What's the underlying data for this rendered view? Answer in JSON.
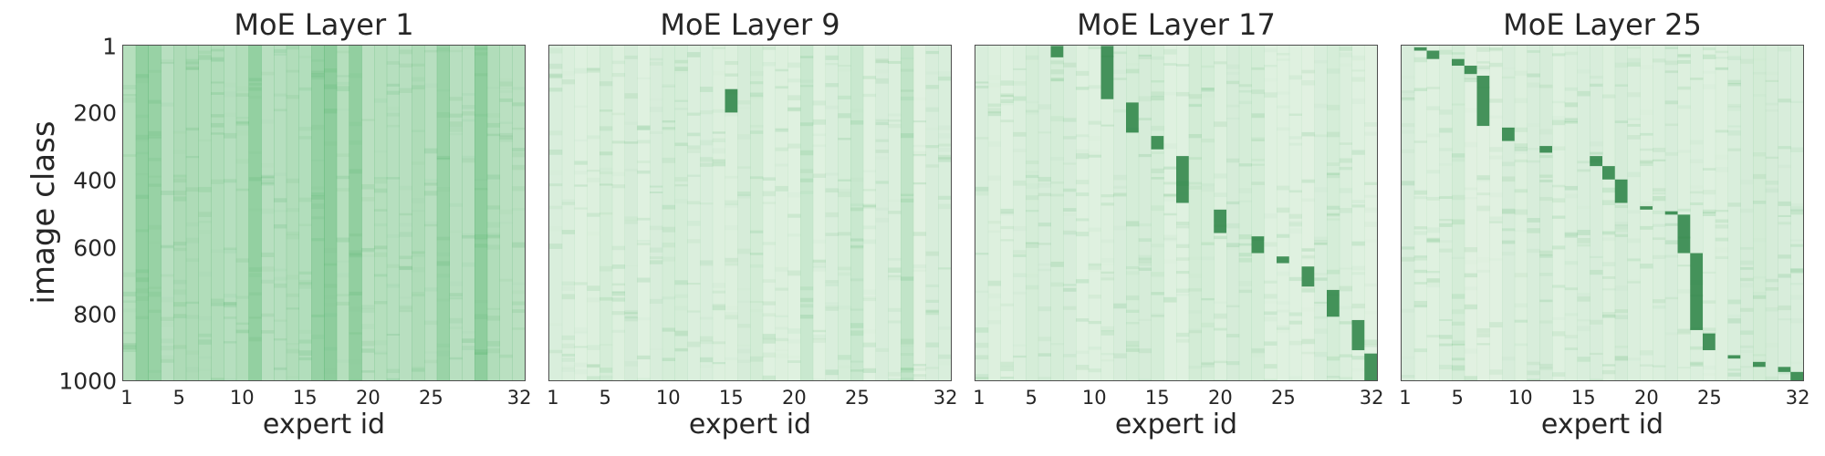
{
  "chart_data": [
    {
      "type": "heatmap",
      "title": "MoE Layer 1",
      "xlabel": "expert id",
      "ylabel": "image class",
      "x_ticks": [
        "1",
        "5",
        "10",
        "15",
        "20",
        "25",
        "32"
      ],
      "y_ticks": [
        "1",
        "200",
        "400",
        "600",
        "800",
        "1000"
      ],
      "x_range": [
        1,
        32
      ],
      "y_range": [
        1,
        1000
      ],
      "colormap": "Greens",
      "description": "Broadly distributed routing; darker vertical bands near experts 2-3, 11, 16-17, 19, 26, 29",
      "strong_columns": [
        2,
        3,
        11,
        16,
        17,
        19,
        26,
        29
      ]
    },
    {
      "type": "heatmap",
      "title": "MoE Layer 9",
      "xlabel": "expert id",
      "x_ticks": [
        "1",
        "5",
        "10",
        "15",
        "20",
        "25",
        "32"
      ],
      "x_range": [
        1,
        32
      ],
      "y_range": [
        1,
        1000
      ],
      "colormap": "Greens",
      "description": "Mostly light; faint vertical bands at experts 21, 25, 29; small block near expert 15 around classes 130-200",
      "strong_columns": [
        21,
        25,
        29
      ],
      "blocks": [
        {
          "expert": 15,
          "from": 130,
          "to": 200
        }
      ]
    },
    {
      "type": "heatmap",
      "title": "MoE Layer 17",
      "xlabel": "expert id",
      "x_ticks": [
        "1",
        "5",
        "10",
        "15",
        "20",
        "25",
        "32"
      ],
      "x_range": [
        1,
        32
      ],
      "y_range": [
        1,
        1000
      ],
      "colormap": "Greens",
      "description": "Diagonal block structure from top-left to bottom-right",
      "blocks": [
        {
          "expert": 7,
          "from": 1,
          "to": 35
        },
        {
          "expert": 11,
          "from": 1,
          "to": 160
        },
        {
          "expert": 13,
          "from": 170,
          "to": 260
        },
        {
          "expert": 15,
          "from": 270,
          "to": 310
        },
        {
          "expert": 17,
          "from": 330,
          "to": 470
        },
        {
          "expert": 20,
          "from": 490,
          "to": 560
        },
        {
          "expert": 23,
          "from": 570,
          "to": 620
        },
        {
          "expert": 25,
          "from": 630,
          "to": 650
        },
        {
          "expert": 27,
          "from": 660,
          "to": 720
        },
        {
          "expert": 29,
          "from": 730,
          "to": 810
        },
        {
          "expert": 31,
          "from": 820,
          "to": 910
        },
        {
          "expert": 32,
          "from": 920,
          "to": 1000
        }
      ]
    },
    {
      "type": "heatmap",
      "title": "MoE Layer 25",
      "xlabel": "expert id",
      "x_ticks": [
        "1",
        "5",
        "10",
        "15",
        "20",
        "25",
        "32"
      ],
      "x_range": [
        1,
        32
      ],
      "y_range": [
        1,
        1000
      ],
      "colormap": "Greens",
      "description": "Strong diagonal block structure",
      "blocks": [
        {
          "expert": 2,
          "from": 5,
          "to": 15
        },
        {
          "expert": 3,
          "from": 15,
          "to": 40
        },
        {
          "expert": 5,
          "from": 40,
          "to": 60
        },
        {
          "expert": 6,
          "from": 60,
          "to": 85
        },
        {
          "expert": 7,
          "from": 90,
          "to": 240
        },
        {
          "expert": 9,
          "from": 245,
          "to": 285
        },
        {
          "expert": 12,
          "from": 300,
          "to": 320
        },
        {
          "expert": 16,
          "from": 330,
          "to": 360
        },
        {
          "expert": 17,
          "from": 360,
          "to": 400
        },
        {
          "expert": 18,
          "from": 400,
          "to": 470
        },
        {
          "expert": 20,
          "from": 480,
          "to": 490
        },
        {
          "expert": 22,
          "from": 495,
          "to": 505
        },
        {
          "expert": 23,
          "from": 505,
          "to": 620
        },
        {
          "expert": 24,
          "from": 620,
          "to": 850
        },
        {
          "expert": 25,
          "from": 860,
          "to": 910
        },
        {
          "expert": 27,
          "from": 925,
          "to": 935
        },
        {
          "expert": 29,
          "from": 945,
          "to": 960
        },
        {
          "expert": 31,
          "from": 960,
          "to": 975
        },
        {
          "expert": 32,
          "from": 975,
          "to": 1000
        }
      ]
    }
  ],
  "labels": {
    "titles": [
      "MoE Layer 1",
      "MoE Layer 9",
      "MoE Layer 17",
      "MoE Layer 25"
    ],
    "xlabel": "expert id",
    "ylabel": "image class",
    "xticks": [
      "1",
      "5",
      "10",
      "15",
      "20",
      "25",
      "32"
    ],
    "yticks": [
      "1",
      "200",
      "400",
      "600",
      "800",
      "1000"
    ]
  },
  "colors": {
    "dark": "#1e7b3a",
    "mid": "#74c476",
    "light": "#e9f5e6",
    "frame": "#4d4d4d"
  }
}
